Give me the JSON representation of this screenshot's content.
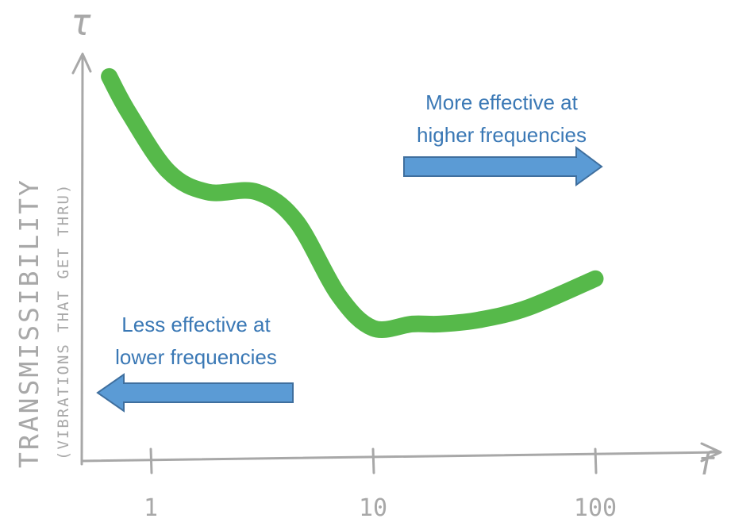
{
  "chart_data": {
    "type": "line",
    "x_scale": "log",
    "xlabel": "f",
    "ylabel_symbol": "τ",
    "ylabel": "TRANSMISSIBILITY",
    "ylabel_sub": "(VIBRATIONS THAT GET THRU)",
    "x_ticks": [
      1,
      10,
      100
    ],
    "x_tick_labels": [
      "1",
      "10",
      "100"
    ],
    "grid": false,
    "series": [
      {
        "color": "#56b94a",
        "x": [
          0.65,
          0.8,
          1.2,
          1.8,
          3.0,
          4.5,
          7.0,
          10.0,
          15.0,
          20.0,
          30.0,
          50.0,
          100.0
        ],
        "y": [
          0.93,
          0.84,
          0.7,
          0.65,
          0.65,
          0.58,
          0.4,
          0.32,
          0.33,
          0.33,
          0.34,
          0.37,
          0.44
        ]
      }
    ],
    "annotations": [
      {
        "id": "higher",
        "lines": [
          "More effective at",
          "higher frequencies"
        ],
        "arrow": "right",
        "color": "#5b9bd5"
      },
      {
        "id": "lower",
        "lines": [
          "Less effective at",
          "lower frequencies"
        ],
        "arrow": "left",
        "color": "#5b9bd5"
      }
    ]
  }
}
